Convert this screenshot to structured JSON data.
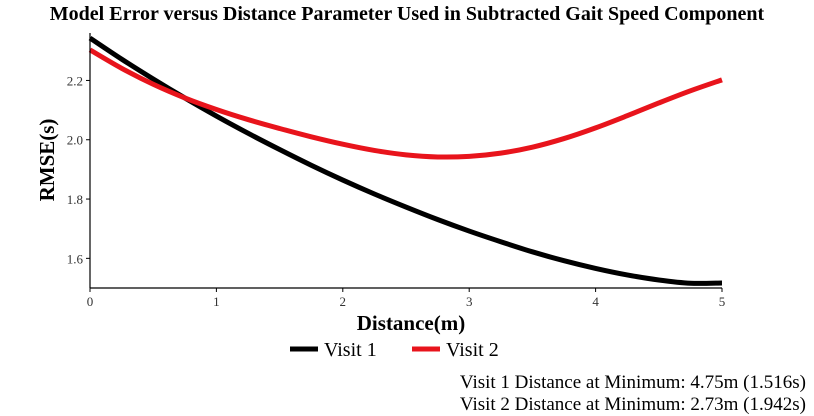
{
  "chart_data": {
    "type": "line",
    "title": "Model Error versus Distance Parameter Used in Subtracted Gait Speed Component",
    "xlabel": "Distance(m)",
    "ylabel": "RMSE(s)",
    "xlim": [
      0,
      5
    ],
    "ylim": [
      1.5,
      2.36
    ],
    "xticks": [
      "0",
      "1",
      "2",
      "3",
      "4",
      "5"
    ],
    "yticks": [
      "1.6",
      "1.8",
      "2.0",
      "2.2"
    ],
    "grid": false,
    "legend_position": "bottom-center",
    "series": [
      {
        "name": "Visit 1",
        "color": "#000000",
        "x": [
          0,
          0.25,
          0.5,
          0.75,
          1.0,
          1.25,
          1.5,
          1.75,
          2.0,
          2.25,
          2.5,
          2.75,
          3.0,
          3.25,
          3.5,
          3.75,
          4.0,
          4.25,
          4.5,
          4.75,
          5.0
        ],
        "y": [
          2.343,
          2.272,
          2.205,
          2.141,
          2.08,
          2.022,
          1.967,
          1.914,
          1.864,
          1.817,
          1.773,
          1.731,
          1.692,
          1.656,
          1.622,
          1.592,
          1.566,
          1.544,
          1.527,
          1.516,
          1.517
        ]
      },
      {
        "name": "Visit 2",
        "color": "#e8141c",
        "x": [
          0,
          0.25,
          0.5,
          0.75,
          1.0,
          1.25,
          1.5,
          1.75,
          2.0,
          2.25,
          2.5,
          2.75,
          3.0,
          3.25,
          3.5,
          3.75,
          4.0,
          4.25,
          4.5,
          4.75,
          5.0
        ],
        "y": [
          2.303,
          2.241,
          2.187,
          2.141,
          2.102,
          2.068,
          2.038,
          2.01,
          1.985,
          1.964,
          1.949,
          1.942,
          1.944,
          1.955,
          1.975,
          2.004,
          2.04,
          2.081,
          2.124,
          2.165,
          2.202
        ]
      }
    ],
    "annotations": [
      "Visit 1 Distance at Minimum: 4.75m (1.516s)",
      "Visit 2 Distance at Minimum: 2.73m (1.942s)"
    ]
  }
}
